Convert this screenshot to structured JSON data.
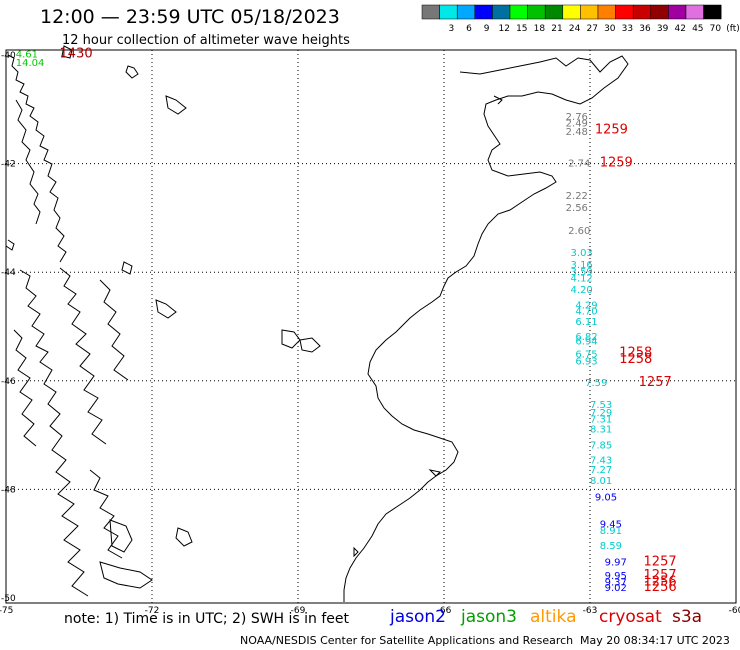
{
  "header": {
    "title": "12:00 — 23:59 UTC 05/18/2023",
    "subtitle": "12 hour collection of altimeter wave heights"
  },
  "legend": {
    "bins": [
      {
        "color": "#777777",
        "label": ""
      },
      {
        "color": "#00e8e8",
        "label": "3"
      },
      {
        "color": "#00a8ff",
        "label": "6"
      },
      {
        "color": "#0000ff",
        "label": "9"
      },
      {
        "color": "#0070a0",
        "label": "12"
      },
      {
        "color": "#00ff00",
        "label": "15"
      },
      {
        "color": "#00c000",
        "label": "18"
      },
      {
        "color": "#008800",
        "label": "21"
      },
      {
        "color": "#ffff00",
        "label": "24"
      },
      {
        "color": "#ffc000",
        "label": "27"
      },
      {
        "color": "#ff8000",
        "label": "30"
      },
      {
        "color": "#ff0000",
        "label": "33"
      },
      {
        "color": "#c80000",
        "label": "36"
      },
      {
        "color": "#900000",
        "label": "39"
      },
      {
        "color": "#a000a0",
        "label": "42"
      },
      {
        "color": "#e070e0",
        "label": "45"
      },
      {
        "color": "#000000",
        "label": "70"
      }
    ],
    "unit": "(ft)"
  },
  "map": {
    "lon_ticks": [
      "-75",
      "-72",
      "-69",
      "-66",
      "-63",
      "-60"
    ],
    "lat_ticks": [
      "-40",
      "-42",
      "-44",
      "-46",
      "-48",
      "-50"
    ],
    "observations": [
      {
        "lon": -74.8,
        "lat": -40.05,
        "label": "4.61",
        "color": "#00cc00"
      },
      {
        "lon": -74.8,
        "lat": -40.2,
        "label": "14.04",
        "color": "#00cc00"
      },
      {
        "lon": -73.9,
        "lat": -40.05,
        "label": "1430",
        "color": "#b00000"
      },
      {
        "lon": -63.5,
        "lat": -41.2,
        "label": "2.76",
        "color": "#777777"
      },
      {
        "lon": -63.5,
        "lat": -41.32,
        "label": "2.49",
        "color": "#777777"
      },
      {
        "lon": -63.5,
        "lat": -41.47,
        "label": "2.48",
        "color": "#777777"
      },
      {
        "lon": -63.45,
        "lat": -42.05,
        "label": "2.74",
        "color": "#777777"
      },
      {
        "lon": -63.5,
        "lat": -42.65,
        "label": "2.22",
        "color": "#777777"
      },
      {
        "lon": -63.5,
        "lat": -42.87,
        "label": "2.56",
        "color": "#777777"
      },
      {
        "lon": -63.45,
        "lat": -43.3,
        "label": "2.60",
        "color": "#777777"
      },
      {
        "lon": -63.4,
        "lat": -43.7,
        "label": "3.03",
        "color": "#00cccc"
      },
      {
        "lon": -63.4,
        "lat": -43.92,
        "label": "3.16",
        "color": "#00cccc"
      },
      {
        "lon": -63.4,
        "lat": -44.05,
        "label": "3.59",
        "color": "#00cccc"
      },
      {
        "lon": -63.4,
        "lat": -44.17,
        "label": "4.12",
        "color": "#00cccc"
      },
      {
        "lon": -63.4,
        "lat": -44.38,
        "label": "4.20",
        "color": "#00cccc"
      },
      {
        "lon": -63.3,
        "lat": -44.67,
        "label": "4.29",
        "color": "#00cccc"
      },
      {
        "lon": -63.3,
        "lat": -44.78,
        "label": "4.70",
        "color": "#00cccc"
      },
      {
        "lon": -63.3,
        "lat": -44.97,
        "label": "6.11",
        "color": "#00cccc"
      },
      {
        "lon": -63.3,
        "lat": -45.25,
        "label": "6.82",
        "color": "#00cccc"
      },
      {
        "lon": -63.3,
        "lat": -45.33,
        "label": "6.94",
        "color": "#00cccc"
      },
      {
        "lon": -63.3,
        "lat": -45.57,
        "label": "6.75",
        "color": "#00cccc"
      },
      {
        "lon": -63.3,
        "lat": -45.7,
        "label": "6.93",
        "color": "#00cccc"
      },
      {
        "lon": -63.1,
        "lat": -46.1,
        "label": "7.59",
        "color": "#00cccc"
      },
      {
        "lon": -63.0,
        "lat": -46.5,
        "label": "7.53",
        "color": "#00cccc"
      },
      {
        "lon": -63.0,
        "lat": -46.65,
        "label": "7.29",
        "color": "#00cccc"
      },
      {
        "lon": -63.0,
        "lat": -46.77,
        "label": "7.31",
        "color": "#00cccc"
      },
      {
        "lon": -63.0,
        "lat": -46.95,
        "label": "8.31",
        "color": "#00cccc"
      },
      {
        "lon": -63.0,
        "lat": -47.25,
        "label": "7.85",
        "color": "#00cccc"
      },
      {
        "lon": -63.0,
        "lat": -47.52,
        "label": "7.43",
        "color": "#00cccc"
      },
      {
        "lon": -63.0,
        "lat": -47.7,
        "label": "7.27",
        "color": "#00cccc"
      },
      {
        "lon": -63.0,
        "lat": -47.9,
        "label": "8.01",
        "color": "#00cccc"
      },
      {
        "lon": -62.9,
        "lat": -48.2,
        "label": "9.05",
        "color": "#0000ff"
      },
      {
        "lon": -62.8,
        "lat": -48.7,
        "label": "9.45",
        "color": "#0000ff"
      },
      {
        "lon": -62.8,
        "lat": -48.82,
        "label": "8.91",
        "color": "#00cccc"
      },
      {
        "lon": -62.8,
        "lat": -49.1,
        "label": "8.59",
        "color": "#00cccc"
      },
      {
        "lon": -62.7,
        "lat": -49.4,
        "label": "9.97",
        "color": "#0000ff"
      },
      {
        "lon": -62.7,
        "lat": -49.65,
        "label": "9.95",
        "color": "#0000ff"
      },
      {
        "lon": -62.7,
        "lat": -49.77,
        "label": "9.37",
        "color": "#0000ff"
      },
      {
        "lon": -62.7,
        "lat": -49.87,
        "label": "9.02",
        "color": "#0000ff"
      },
      {
        "lon": -62.9,
        "lat": -41.45,
        "label": "1259",
        "color": "#dd0000"
      },
      {
        "lon": -62.8,
        "lat": -42.05,
        "label": "1259",
        "color": "#dd0000"
      },
      {
        "lon": -62.4,
        "lat": -45.55,
        "label": "1258",
        "color": "#dd0000"
      },
      {
        "lon": -62.4,
        "lat": -45.67,
        "label": "1258",
        "color": "#dd0000"
      },
      {
        "lon": -62.0,
        "lat": -46.1,
        "label": "1257",
        "color": "#dd0000"
      },
      {
        "lon": -61.9,
        "lat": -49.4,
        "label": "1257",
        "color": "#dd0000"
      },
      {
        "lon": -61.9,
        "lat": -49.65,
        "label": "1257",
        "color": "#dd0000"
      },
      {
        "lon": -61.9,
        "lat": -49.77,
        "label": "1256",
        "color": "#dd0000"
      },
      {
        "lon": -61.9,
        "lat": -49.87,
        "label": "1256",
        "color": "#dd0000"
      }
    ]
  },
  "footer": {
    "note": "note: 1) Time is in UTC; 2) SWH is in feet",
    "satellites": [
      {
        "name": "jason2",
        "color": "#0000dd"
      },
      {
        "name": "jason3",
        "color": "#00a000"
      },
      {
        "name": "altika",
        "color": "#ff9900"
      },
      {
        "name": "cryosat",
        "color": "#dd0000"
      },
      {
        "name": "s3a",
        "color": "#880000"
      }
    ],
    "credit": "NOAA/NESDIS Center for Satellite Applications and Research",
    "timestamp": "May 20 08:34:17 UTC 2023"
  }
}
